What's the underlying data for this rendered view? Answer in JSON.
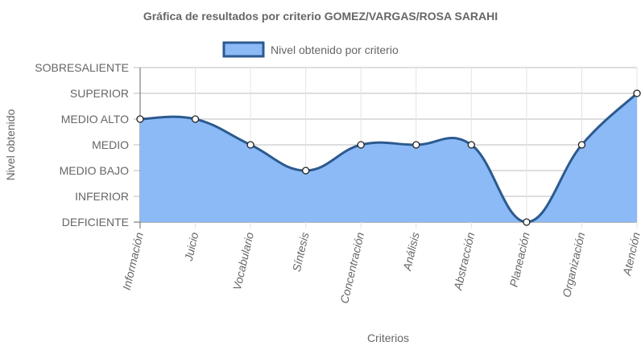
{
  "chart_data": {
    "type": "area",
    "title": "Gráfica de resultados por criterio GOMEZ/VARGAS/ROSA SARAHI",
    "xlabel": "Criterios",
    "ylabel": "Nivel obtenido",
    "categories": [
      "Información",
      "Juicio",
      "Vocabulario",
      "Síntesis",
      "Concentración",
      "Análisis",
      "Abstracción",
      "Planeación",
      "Organización",
      "Atención"
    ],
    "y_levels": [
      "DEFICIENTE",
      "INFERIOR",
      "MEDIO BAJO",
      "MEDIO",
      "MEDIO ALTO",
      "SUPERIOR",
      "SOBRESALIENTE"
    ],
    "ylim": [
      0,
      6
    ],
    "grid": true,
    "legend_position": "top",
    "series": [
      {
        "name": "Nivel obtenido por criterio",
        "values": [
          4,
          4,
          3,
          2,
          3,
          3,
          3,
          0,
          3,
          5
        ],
        "value_labels": [
          "MEDIO ALTO",
          "MEDIO ALTO",
          "MEDIO",
          "MEDIO BAJO",
          "MEDIO",
          "MEDIO",
          "MEDIO",
          "DEFICIENTE",
          "MEDIO",
          "SUPERIOR"
        ],
        "fill_color": "#8bbaf7",
        "line_color": "#2c5a8f",
        "point_color": "#ffffff"
      }
    ]
  }
}
